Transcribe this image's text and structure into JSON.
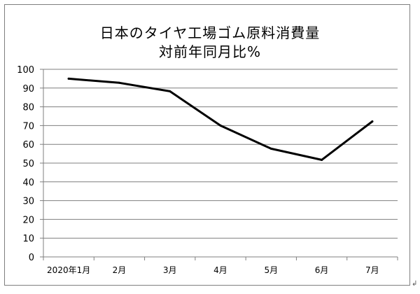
{
  "chart_data": {
    "type": "line",
    "title": "日本のタイヤ工場ゴム原料消費量",
    "subtitle": "対前年同月比%",
    "categories": [
      "2020年1月",
      "2月",
      "3月",
      "4月",
      "5月",
      "6月",
      "7月"
    ],
    "series": [
      {
        "values": [
          95,
          92.8,
          88.3,
          70,
          57.7,
          51.7,
          72.2
        ],
        "color": "#000000"
      }
    ],
    "xlabel": "",
    "ylabel": "",
    "ylim": [
      0,
      100
    ],
    "yticks": [
      "0",
      "10",
      "20",
      "30",
      "40",
      "50",
      "60",
      "70",
      "80",
      "90",
      "100"
    ],
    "grid": true,
    "legend": "none"
  },
  "colors": {
    "gridline": "#7f7f7f",
    "axis": "#7f7f7f",
    "line": "#000000",
    "frame": "#7f7f7f"
  },
  "trailing_mark": "↲"
}
